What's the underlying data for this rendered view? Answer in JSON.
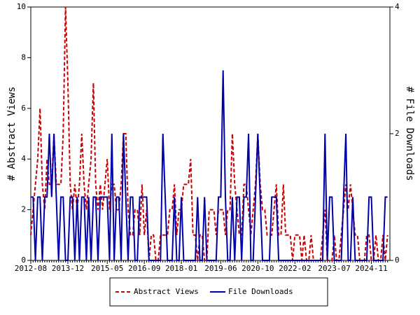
{
  "chart_data": {
    "type": "line",
    "y_label": "# Abstract Views",
    "y2_label": "# File Downloads",
    "categories": [
      "2012-08",
      null,
      null,
      null,
      null,
      null,
      null,
      null,
      null,
      null,
      null,
      null,
      null,
      null,
      null,
      null,
      "2013-12",
      null,
      null,
      null,
      null,
      null,
      null,
      null,
      null,
      null,
      null,
      null,
      null,
      null,
      null,
      null,
      null,
      "2015-05",
      null,
      null,
      null,
      null,
      null,
      null,
      null,
      null,
      null,
      null,
      null,
      null,
      null,
      null,
      null,
      "2016-09",
      null,
      null,
      null,
      null,
      null,
      null,
      null,
      null,
      null,
      null,
      null,
      null,
      null,
      null,
      null,
      "2018-01",
      null,
      null,
      null,
      null,
      null,
      null,
      null,
      null,
      null,
      null,
      null,
      null,
      null,
      null,
      null,
      null,
      "2019-06",
      null,
      null,
      null,
      null,
      null,
      null,
      null,
      null,
      null,
      null,
      null,
      null,
      null,
      null,
      null,
      "2020-10",
      null,
      null,
      null,
      null,
      null,
      null,
      null,
      null,
      null,
      null,
      null,
      null,
      null,
      null,
      null,
      "2022-02",
      null,
      null,
      null,
      null,
      null,
      null,
      null,
      null,
      null,
      null,
      null,
      null,
      null,
      null,
      null,
      null,
      "2023-07",
      null,
      null,
      null,
      null,
      null,
      null,
      null,
      null,
      null,
      null,
      null,
      null,
      null,
      null,
      null,
      "2024-11",
      null,
      null,
      null,
      null,
      null,
      null,
      null
    ],
    "series": [
      {
        "name": "Abstract Views",
        "color": "#cc0000",
        "line_style": "dashed",
        "axis": "y",
        "values": [
          1,
          2,
          3,
          4,
          6,
          3,
          2,
          4,
          3,
          3,
          5,
          3,
          3,
          3,
          5,
          10,
          7,
          3,
          2,
          3,
          2,
          3,
          5,
          3,
          2,
          3,
          4,
          7,
          3,
          2,
          3,
          2,
          3,
          4,
          2,
          3,
          3,
          2,
          2,
          3,
          5,
          5,
          2,
          1,
          1,
          2,
          2,
          1,
          3,
          1,
          2,
          0,
          1,
          1,
          0,
          0,
          1,
          1,
          1,
          1,
          2,
          2,
          3,
          1,
          2,
          2,
          3,
          3,
          3,
          4,
          1,
          1,
          0,
          1,
          1,
          0,
          0,
          2,
          2,
          2,
          1,
          2,
          2,
          2,
          1,
          2,
          2,
          5,
          3,
          2,
          1,
          1,
          3,
          3,
          2,
          1,
          2,
          3,
          5,
          3,
          2,
          2,
          1,
          1,
          1,
          2,
          3,
          1,
          1,
          3,
          1,
          1,
          1,
          0,
          1,
          1,
          1,
          0,
          1,
          0,
          0,
          1,
          0,
          0,
          0,
          0,
          1,
          2,
          0,
          0,
          0,
          1,
          0,
          0,
          1,
          2,
          3,
          2,
          3,
          2,
          1,
          1,
          0,
          0,
          0,
          1,
          1,
          0,
          0,
          1,
          0,
          0,
          1,
          0,
          1
        ]
      },
      {
        "name": "File Downloads",
        "color": "#0000aa",
        "line_style": "solid",
        "axis": "y2",
        "values": [
          1,
          1,
          0,
          1,
          1,
          0,
          1,
          1,
          2,
          1,
          2,
          1,
          0,
          1,
          1,
          0,
          0,
          1,
          1,
          0,
          1,
          0,
          1,
          1,
          0,
          1,
          0,
          1,
          1,
          0,
          1,
          1,
          1,
          1,
          0,
          2,
          0,
          1,
          1,
          0,
          2,
          1,
          0,
          1,
          1,
          0,
          0,
          1,
          1,
          1,
          1,
          0,
          0,
          0,
          0,
          0,
          0,
          2,
          1,
          0,
          0,
          0,
          1,
          0,
          0,
          1,
          0,
          0,
          0,
          0,
          0,
          0,
          1,
          0,
          0,
          1,
          0,
          0,
          0,
          0,
          0,
          1,
          1,
          3,
          1,
          0,
          0,
          1,
          0,
          1,
          1,
          0,
          1,
          1,
          2,
          0,
          0,
          1,
          2,
          1,
          0,
          0,
          0,
          0,
          1,
          1,
          1,
          0,
          0,
          0,
          0,
          0,
          0,
          0,
          0,
          0,
          0,
          0,
          0,
          0,
          0,
          0,
          0,
          0,
          0,
          0,
          0,
          2,
          0,
          1,
          1,
          0,
          0,
          0,
          0,
          1,
          2,
          0,
          0,
          1,
          0,
          0,
          0,
          0,
          0,
          0,
          1,
          1,
          0,
          0,
          0,
          0,
          0,
          1,
          1
        ]
      }
    ],
    "ylim": [
      0,
      10
    ],
    "yticks": [
      0,
      2,
      4,
      6,
      8,
      10
    ],
    "y2lim": [
      0,
      4
    ],
    "y2ticks": [
      0,
      2,
      4
    ],
    "legend": "bottom"
  }
}
